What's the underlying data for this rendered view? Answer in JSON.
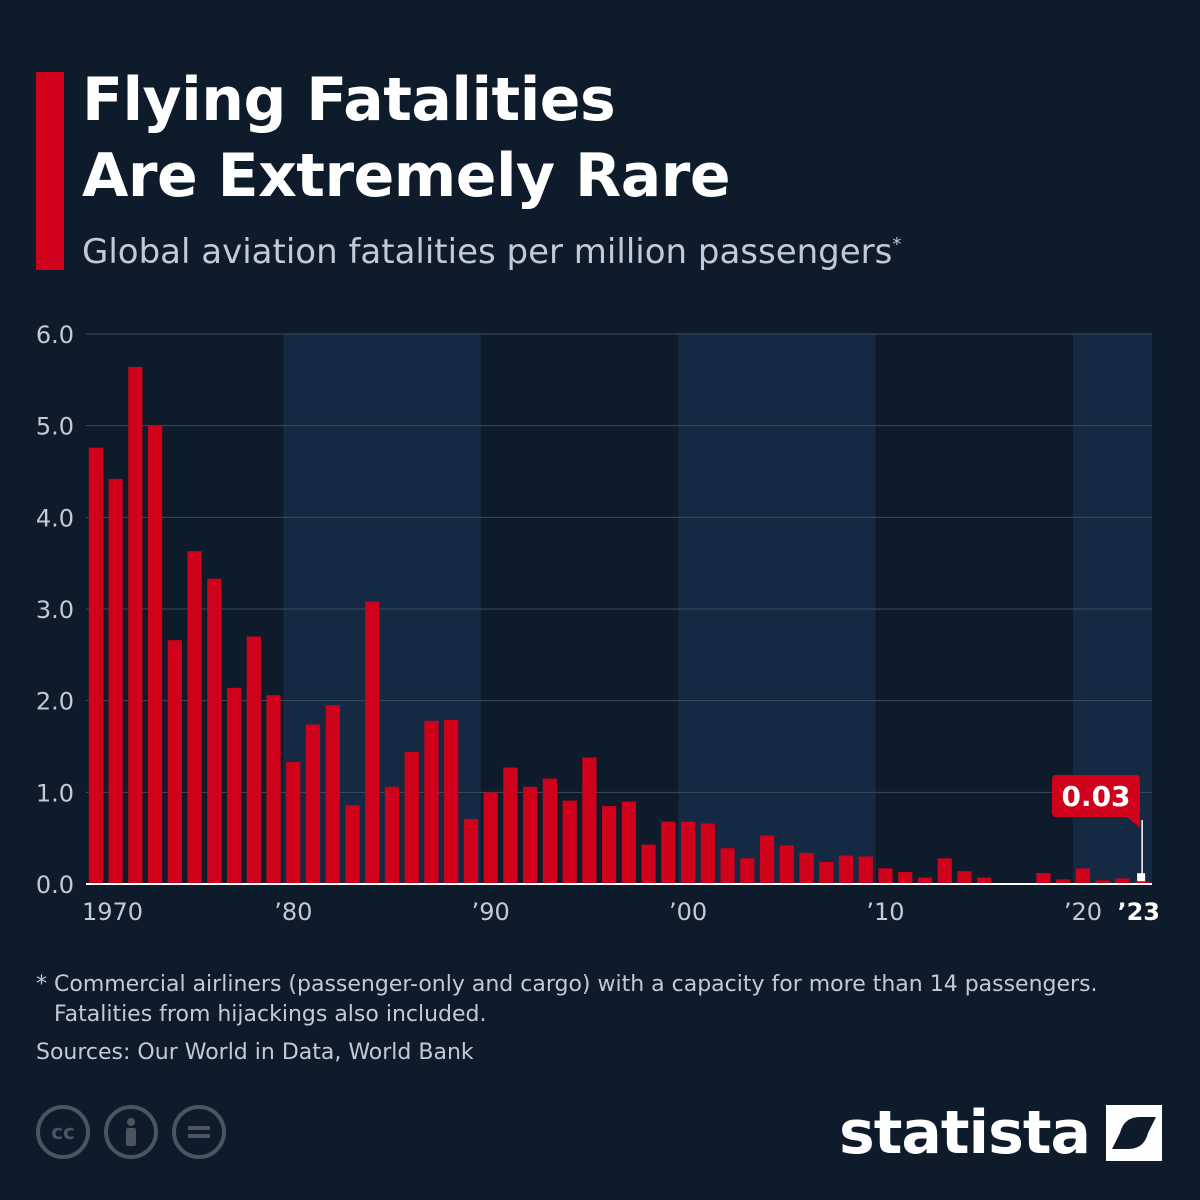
{
  "title_line1": "Flying Fatalities",
  "title_line2": "Are Extremely Rare",
  "subtitle": "Global aviation fatalities per million passengers",
  "subtitle_marker": "*",
  "footnote_marker": "*",
  "footnote_line1": "Commercial airliners (passenger-only and cargo) with a capacity for more than 14 passengers.",
  "footnote_line2": "Fatalities from hijackings also included.",
  "source": "Sources: Our World in Data, World Bank",
  "brand": "statista",
  "license_icons": [
    "cc-icon",
    "person-icon",
    "equals-icon"
  ],
  "colors": {
    "background": "#0d1b2a",
    "band": "#152a42",
    "bar": "#d0021b",
    "grid": "#3a4c5e",
    "text": "#ffffff",
    "muted": "#c4cad3"
  },
  "chart_data": {
    "type": "bar",
    "title": "Flying Fatalities Are Extremely Rare",
    "ylabel": "Global aviation fatalities per million passengers",
    "ylim": [
      0,
      6
    ],
    "y_ticks": [
      "0.0",
      "1.0",
      "2.0",
      "3.0",
      "4.0",
      "5.0",
      "6.0"
    ],
    "x_tick_labels": [
      {
        "year": 1970,
        "label": "1970"
      },
      {
        "year": 1980,
        "label": "’80"
      },
      {
        "year": 1990,
        "label": "’90"
      },
      {
        "year": 2000,
        "label": "’00"
      },
      {
        "year": 2010,
        "label": "’10"
      },
      {
        "year": 2020,
        "label": "’20"
      },
      {
        "year": 2023,
        "label": "’23"
      }
    ],
    "shaded_decades": [
      [
        1980,
        1989
      ],
      [
        2000,
        2009
      ],
      [
        2020,
        2023
      ]
    ],
    "years": [
      1970,
      1971,
      1972,
      1973,
      1974,
      1975,
      1976,
      1977,
      1978,
      1979,
      1980,
      1981,
      1982,
      1983,
      1984,
      1985,
      1986,
      1987,
      1988,
      1989,
      1990,
      1991,
      1992,
      1993,
      1994,
      1995,
      1996,
      1997,
      1998,
      1999,
      2000,
      2001,
      2002,
      2003,
      2004,
      2005,
      2006,
      2007,
      2008,
      2009,
      2010,
      2011,
      2012,
      2013,
      2014,
      2015,
      2016,
      2017,
      2018,
      2019,
      2020,
      2021,
      2022,
      2023
    ],
    "values": [
      4.76,
      4.42,
      5.64,
      5.0,
      2.66,
      3.63,
      3.33,
      2.14,
      2.7,
      2.06,
      1.33,
      1.74,
      1.95,
      0.86,
      3.08,
      1.06,
      1.44,
      1.78,
      1.79,
      0.71,
      1.0,
      1.27,
      1.06,
      1.15,
      0.91,
      1.38,
      0.85,
      0.9,
      0.43,
      0.68,
      0.68,
      0.66,
      0.39,
      0.28,
      0.53,
      0.42,
      0.34,
      0.24,
      0.31,
      0.3,
      0.17,
      0.13,
      0.07,
      0.28,
      0.14,
      0.07,
      0.0,
      0.0,
      0.12,
      0.05,
      0.17,
      0.04,
      0.06,
      0.03
    ],
    "callout": {
      "year": 2023,
      "label": "0.03"
    }
  }
}
